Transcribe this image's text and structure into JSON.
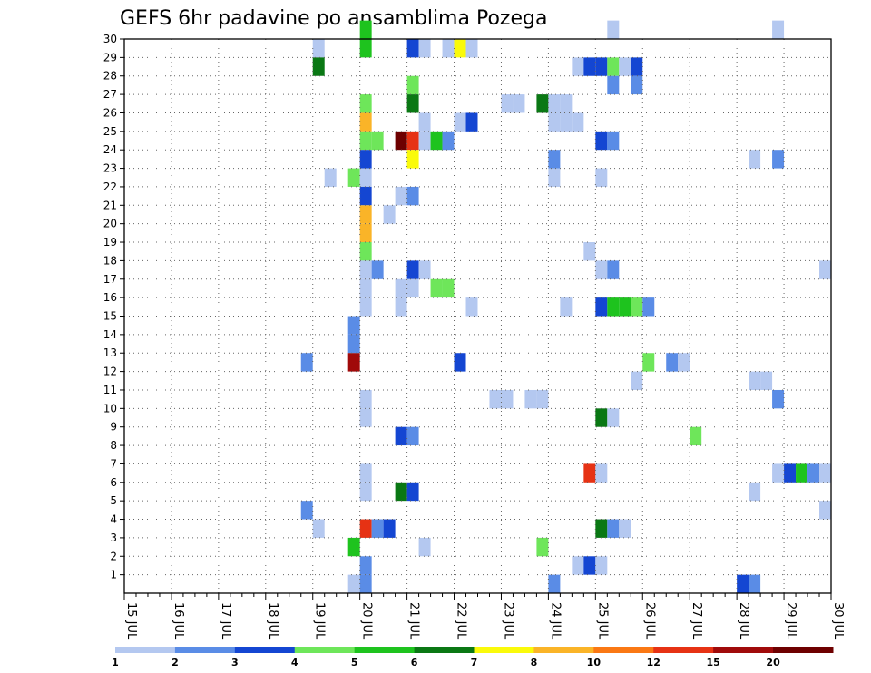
{
  "chart_data": {
    "type": "heatmap",
    "title": "GEFS 6hr padavine po ansamblima Pozega",
    "xlabel": "",
    "ylabel": "",
    "x_axis": {
      "labels": [
        "15 JUL",
        "16 JUL",
        "17 JUL",
        "18 JUL",
        "19 JUL",
        "20 JUL",
        "21 JUL",
        "22 JUL",
        "23 JUL",
        "24 JUL",
        "25 JUL",
        "26 JUL",
        "27 JUL",
        "28 JUL",
        "29 JUL",
        "30 JUL"
      ],
      "range_steps": [
        0,
        60
      ],
      "steps_per_day": 4
    },
    "y_axis": {
      "ticks": [
        1,
        2,
        3,
        4,
        5,
        6,
        7,
        8,
        9,
        10,
        11,
        12,
        13,
        14,
        15,
        16,
        17,
        18,
        19,
        20,
        21,
        22,
        23,
        24,
        25,
        26,
        27,
        28,
        29,
        30
      ],
      "range": [
        0,
        30
      ]
    },
    "grid": true,
    "colorbar": {
      "labels": [
        "1",
        "2",
        "3",
        "4",
        "5",
        "6",
        "7",
        "8",
        "10",
        "12",
        "15",
        "20"
      ],
      "colors": [
        "#b4c8f0",
        "#5a8ce6",
        "#1446d2",
        "#6ee65a",
        "#1ec31e",
        "#0a7814",
        "#fafa0a",
        "#fab428",
        "#fa7814",
        "#e63214",
        "#a00a0a",
        "#6e0000"
      ]
    },
    "cells": [
      {
        "m": 30,
        "s": 20,
        "c": 4
      },
      {
        "m": 30,
        "s": 41,
        "c": 0
      },
      {
        "m": 30,
        "s": 55,
        "c": 0
      },
      {
        "m": 29,
        "s": 16,
        "c": 0
      },
      {
        "m": 29,
        "s": 20,
        "c": 4
      },
      {
        "m": 29,
        "s": 24,
        "c": 2
      },
      {
        "m": 29,
        "s": 25,
        "c": 0
      },
      {
        "m": 29,
        "s": 27,
        "c": 0
      },
      {
        "m": 29,
        "s": 28,
        "c": 6
      },
      {
        "m": 29,
        "s": 29,
        "c": 0
      },
      {
        "m": 28,
        "s": 16,
        "c": 5
      },
      {
        "m": 28,
        "s": 38,
        "c": 0
      },
      {
        "m": 28,
        "s": 39,
        "c": 2
      },
      {
        "m": 28,
        "s": 40,
        "c": 2
      },
      {
        "m": 28,
        "s": 41,
        "c": 3
      },
      {
        "m": 28,
        "s": 42,
        "c": 0
      },
      {
        "m": 28,
        "s": 43,
        "c": 2
      },
      {
        "m": 27,
        "s": 24,
        "c": 3
      },
      {
        "m": 27,
        "s": 41,
        "c": 1
      },
      {
        "m": 27,
        "s": 43,
        "c": 1
      },
      {
        "m": 26,
        "s": 20,
        "c": 3
      },
      {
        "m": 26,
        "s": 24,
        "c": 5
      },
      {
        "m": 26,
        "s": 32,
        "c": 0
      },
      {
        "m": 26,
        "s": 33,
        "c": 0
      },
      {
        "m": 26,
        "s": 35,
        "c": 5
      },
      {
        "m": 26,
        "s": 36,
        "c": 0
      },
      {
        "m": 26,
        "s": 37,
        "c": 0
      },
      {
        "m": 25,
        "s": 20,
        "c": 7
      },
      {
        "m": 25,
        "s": 25,
        "c": 0
      },
      {
        "m": 25,
        "s": 28,
        "c": 0
      },
      {
        "m": 25,
        "s": 29,
        "c": 2
      },
      {
        "m": 25,
        "s": 36,
        "c": 0
      },
      {
        "m": 25,
        "s": 37,
        "c": 0
      },
      {
        "m": 25,
        "s": 38,
        "c": 0
      },
      {
        "m": 24,
        "s": 20,
        "c": 3
      },
      {
        "m": 24,
        "s": 21,
        "c": 3
      },
      {
        "m": 24,
        "s": 23,
        "c": 11
      },
      {
        "m": 24,
        "s": 24,
        "c": 9
      },
      {
        "m": 24,
        "s": 25,
        "c": 0
      },
      {
        "m": 24,
        "s": 26,
        "c": 4
      },
      {
        "m": 24,
        "s": 27,
        "c": 1
      },
      {
        "m": 24,
        "s": 40,
        "c": 2
      },
      {
        "m": 24,
        "s": 41,
        "c": 1
      },
      {
        "m": 23,
        "s": 20,
        "c": 2
      },
      {
        "m": 23,
        "s": 24,
        "c": 6
      },
      {
        "m": 23,
        "s": 36,
        "c": 1
      },
      {
        "m": 23,
        "s": 53,
        "c": 0
      },
      {
        "m": 23,
        "s": 55,
        "c": 1
      },
      {
        "m": 22,
        "s": 17,
        "c": 0
      },
      {
        "m": 22,
        "s": 19,
        "c": 3
      },
      {
        "m": 22,
        "s": 20,
        "c": 0
      },
      {
        "m": 22,
        "s": 36,
        "c": 0
      },
      {
        "m": 22,
        "s": 40,
        "c": 0
      },
      {
        "m": 21,
        "s": 20,
        "c": 2
      },
      {
        "m": 21,
        "s": 23,
        "c": 0
      },
      {
        "m": 21,
        "s": 24,
        "c": 1
      },
      {
        "m": 20,
        "s": 20,
        "c": 7
      },
      {
        "m": 20,
        "s": 22,
        "c": 0
      },
      {
        "m": 19,
        "s": 20,
        "c": 7
      },
      {
        "m": 18,
        "s": 20,
        "c": 3
      },
      {
        "m": 18,
        "s": 39,
        "c": 0
      },
      {
        "m": 17,
        "s": 20,
        "c": 0
      },
      {
        "m": 17,
        "s": 21,
        "c": 1
      },
      {
        "m": 17,
        "s": 24,
        "c": 2
      },
      {
        "m": 17,
        "s": 25,
        "c": 0
      },
      {
        "m": 17,
        "s": 40,
        "c": 0
      },
      {
        "m": 17,
        "s": 41,
        "c": 1
      },
      {
        "m": 17,
        "s": 59,
        "c": 0
      },
      {
        "m": 16,
        "s": 20,
        "c": 0
      },
      {
        "m": 16,
        "s": 23,
        "c": 0
      },
      {
        "m": 16,
        "s": 24,
        "c": 0
      },
      {
        "m": 16,
        "s": 26,
        "c": 3
      },
      {
        "m": 16,
        "s": 27,
        "c": 3
      },
      {
        "m": 15,
        "s": 20,
        "c": 0
      },
      {
        "m": 15,
        "s": 23,
        "c": 0
      },
      {
        "m": 15,
        "s": 29,
        "c": 0
      },
      {
        "m": 15,
        "s": 37,
        "c": 0
      },
      {
        "m": 15,
        "s": 40,
        "c": 2
      },
      {
        "m": 15,
        "s": 41,
        "c": 4
      },
      {
        "m": 15,
        "s": 42,
        "c": 4
      },
      {
        "m": 15,
        "s": 43,
        "c": 3
      },
      {
        "m": 15,
        "s": 44,
        "c": 1
      },
      {
        "m": 14,
        "s": 19,
        "c": 1
      },
      {
        "m": 13,
        "s": 19,
        "c": 1
      },
      {
        "m": 12,
        "s": 15,
        "c": 1
      },
      {
        "m": 12,
        "s": 19,
        "c": 10
      },
      {
        "m": 12,
        "s": 28,
        "c": 2
      },
      {
        "m": 12,
        "s": 44,
        "c": 3
      },
      {
        "m": 12,
        "s": 46,
        "c": 1
      },
      {
        "m": 12,
        "s": 47,
        "c": 0
      },
      {
        "m": 11,
        "s": 43,
        "c": 0
      },
      {
        "m": 11,
        "s": 53,
        "c": 0
      },
      {
        "m": 11,
        "s": 54,
        "c": 0
      },
      {
        "m": 10,
        "s": 20,
        "c": 0
      },
      {
        "m": 10,
        "s": 31,
        "c": 0
      },
      {
        "m": 10,
        "s": 32,
        "c": 0
      },
      {
        "m": 10,
        "s": 34,
        "c": 0
      },
      {
        "m": 10,
        "s": 35,
        "c": 0
      },
      {
        "m": 10,
        "s": 55,
        "c": 1
      },
      {
        "m": 9,
        "s": 20,
        "c": 0
      },
      {
        "m": 9,
        "s": 40,
        "c": 5
      },
      {
        "m": 9,
        "s": 41,
        "c": 0
      },
      {
        "m": 8,
        "s": 23,
        "c": 2
      },
      {
        "m": 8,
        "s": 24,
        "c": 1
      },
      {
        "m": 8,
        "s": 48,
        "c": 3
      },
      {
        "m": 6,
        "s": 20,
        "c": 0
      },
      {
        "m": 6,
        "s": 39,
        "c": 9
      },
      {
        "m": 6,
        "s": 40,
        "c": 0
      },
      {
        "m": 6,
        "s": 55,
        "c": 0
      },
      {
        "m": 6,
        "s": 56,
        "c": 2
      },
      {
        "m": 6,
        "s": 57,
        "c": 4
      },
      {
        "m": 6,
        "s": 58,
        "c": 1
      },
      {
        "m": 6,
        "s": 59,
        "c": 0
      },
      {
        "m": 5,
        "s": 20,
        "c": 0
      },
      {
        "m": 5,
        "s": 23,
        "c": 5
      },
      {
        "m": 5,
        "s": 24,
        "c": 2
      },
      {
        "m": 5,
        "s": 53,
        "c": 0
      },
      {
        "m": 4,
        "s": 15,
        "c": 1
      },
      {
        "m": 4,
        "s": 59,
        "c": 0
      },
      {
        "m": 3,
        "s": 16,
        "c": 0
      },
      {
        "m": 3,
        "s": 20,
        "c": 9
      },
      {
        "m": 3,
        "s": 21,
        "c": 1
      },
      {
        "m": 3,
        "s": 22,
        "c": 2
      },
      {
        "m": 3,
        "s": 40,
        "c": 5
      },
      {
        "m": 3,
        "s": 41,
        "c": 1
      },
      {
        "m": 3,
        "s": 42,
        "c": 0
      },
      {
        "m": 2,
        "s": 19,
        "c": 4
      },
      {
        "m": 2,
        "s": 25,
        "c": 0
      },
      {
        "m": 2,
        "s": 35,
        "c": 3
      },
      {
        "m": 1,
        "s": 20,
        "c": 1
      },
      {
        "m": 1,
        "s": 38,
        "c": 0
      },
      {
        "m": 1,
        "s": 39,
        "c": 2
      },
      {
        "m": 1,
        "s": 40,
        "c": 0
      },
      {
        "m": 0,
        "s": 19,
        "c": 0
      },
      {
        "m": 0,
        "s": 20,
        "c": 1
      },
      {
        "m": 0,
        "s": 36,
        "c": 1
      },
      {
        "m": 0,
        "s": 52,
        "c": 2
      },
      {
        "m": 0,
        "s": 53,
        "c": 1
      }
    ]
  }
}
